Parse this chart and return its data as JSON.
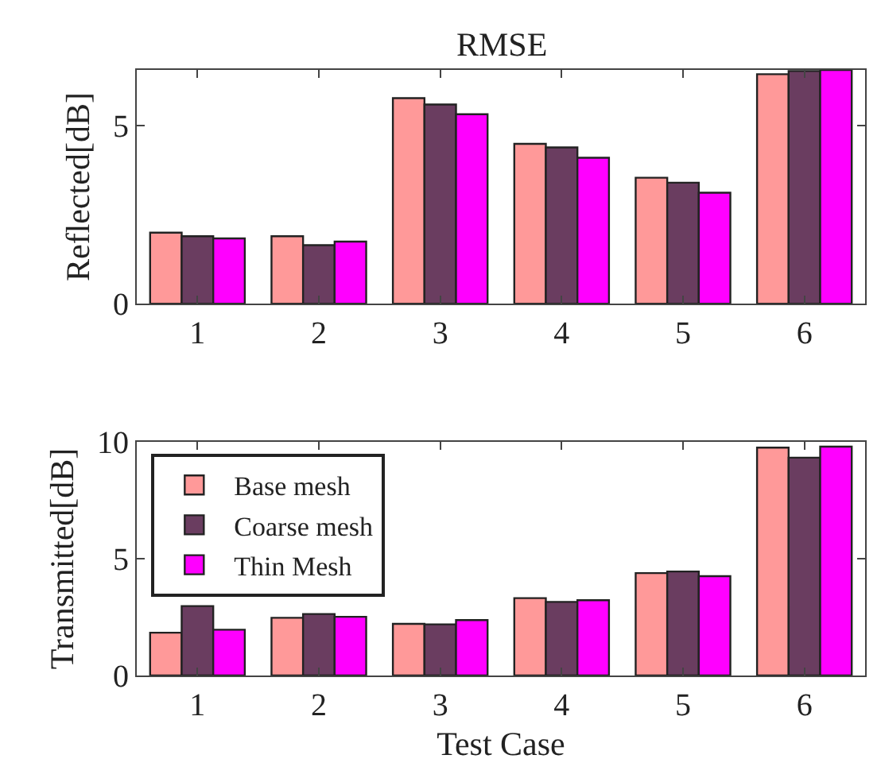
{
  "chart_data": [
    {
      "type": "bar",
      "title": "RMSE",
      "ylabel": "Reflected[dB]",
      "categories": [
        "1",
        "2",
        "3",
        "4",
        "5",
        "6"
      ],
      "ylim": [
        0,
        6.55
      ],
      "yticks": [
        0,
        5
      ],
      "legend": false,
      "series": [
        {
          "color": "#ff9999",
          "values": [
            1.99,
            1.89,
            5.76,
            4.48,
            3.53,
            6.43
          ]
        },
        {
          "color": "#6a3d60",
          "values": [
            1.89,
            1.64,
            5.58,
            4.38,
            3.39,
            6.52
          ]
        },
        {
          "color": "#ff00ff",
          "values": [
            1.83,
            1.74,
            5.31,
            4.09,
            3.11,
            6.55
          ]
        }
      ]
    },
    {
      "type": "bar",
      "ylabel": "Transmitted[dB]",
      "xlabel": "Test Case",
      "categories": [
        "1",
        "2",
        "3",
        "4",
        "5",
        "6"
      ],
      "ylim": [
        0,
        10
      ],
      "yticks": [
        0,
        5,
        10
      ],
      "legend": "top left",
      "series": [
        {
          "name": "Base mesh",
          "color": "#ff9999",
          "values": [
            1.83,
            2.47,
            2.21,
            3.31,
            4.38,
            9.75
          ]
        },
        {
          "name": "Coarse mesh",
          "color": "#6a3d60",
          "values": [
            2.97,
            2.63,
            2.19,
            3.15,
            4.45,
            9.32
          ]
        },
        {
          "name": "Thin Mesh",
          "color": "#ff00ff",
          "values": [
            1.96,
            2.51,
            2.37,
            3.22,
            4.25,
            9.79
          ]
        }
      ]
    }
  ]
}
